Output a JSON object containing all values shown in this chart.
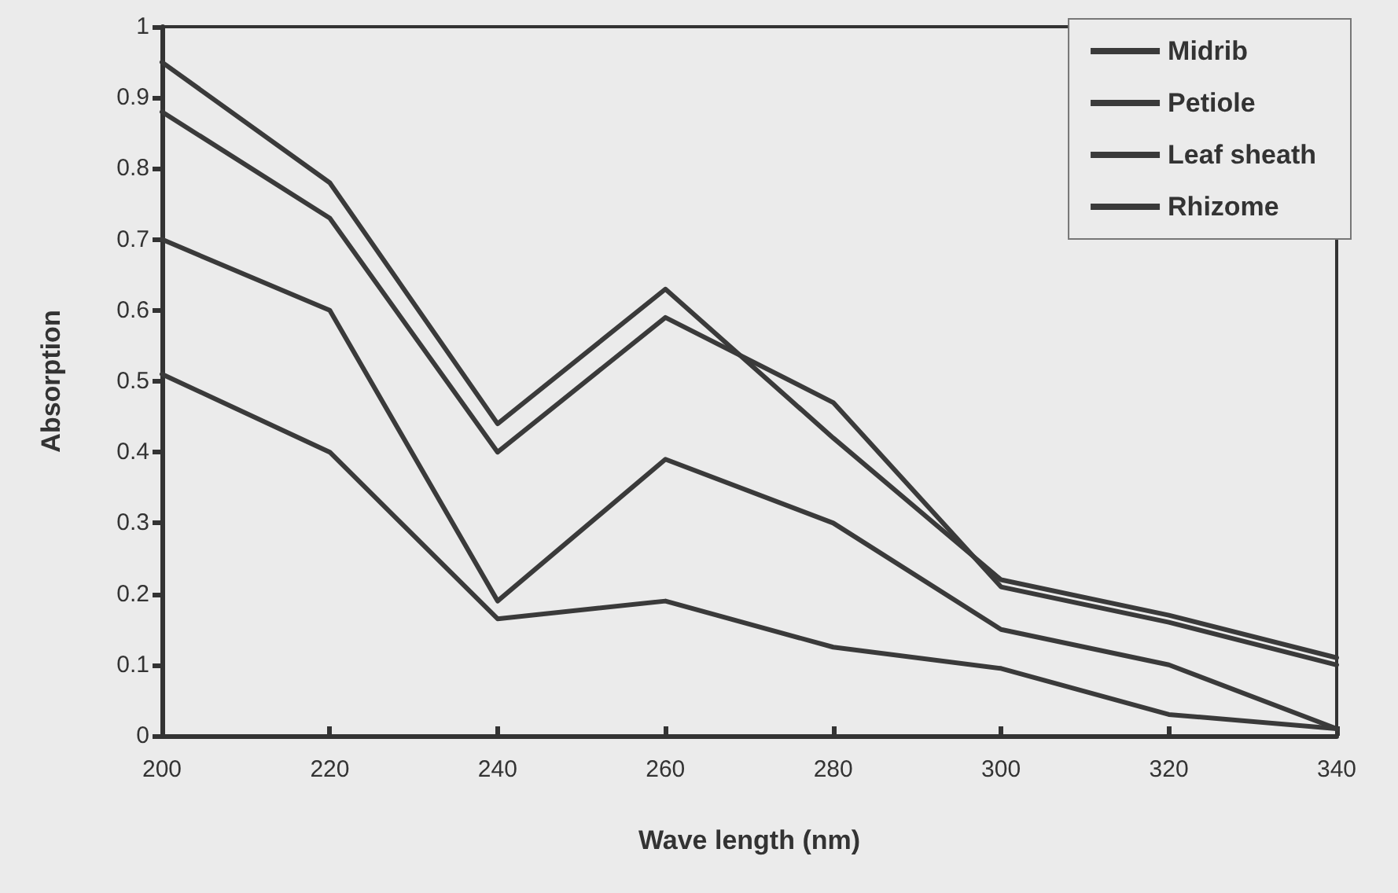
{
  "chart_data": {
    "type": "line",
    "xlabel": "Wave length (nm)",
    "ylabel": "Absorption",
    "x": [
      200,
      220,
      240,
      260,
      280,
      300,
      320,
      340
    ],
    "series": [
      {
        "name": "Midrib",
        "color": "#3a3a3a",
        "values": [
          0.95,
          0.78,
          0.44,
          0.63,
          0.42,
          0.22,
          0.17,
          0.11
        ]
      },
      {
        "name": "Petiole",
        "color": "#3a3a3a",
        "values": [
          0.88,
          0.73,
          0.4,
          0.59,
          0.47,
          0.21,
          0.16,
          0.1
        ]
      },
      {
        "name": "Leaf sheath",
        "color": "#3a3a3a",
        "values": [
          0.7,
          0.6,
          0.19,
          0.39,
          0.3,
          0.15,
          0.1,
          0.01
        ]
      },
      {
        "name": "Rhizome",
        "color": "#3a3a3a",
        "values": [
          0.51,
          0.4,
          0.165,
          0.19,
          0.125,
          0.095,
          0.03,
          0.01
        ]
      }
    ],
    "xlim": [
      200,
      340
    ],
    "xticks": [
      200,
      220,
      240,
      260,
      280,
      300,
      320,
      340
    ],
    "ylim": [
      0,
      1
    ],
    "yticks": [
      0,
      0.1,
      0.2,
      0.3,
      0.4,
      0.5,
      0.6,
      0.7,
      0.8,
      0.9,
      1
    ],
    "grid": false,
    "legend": "top right",
    "marker": "none",
    "line_style": "solid"
  }
}
